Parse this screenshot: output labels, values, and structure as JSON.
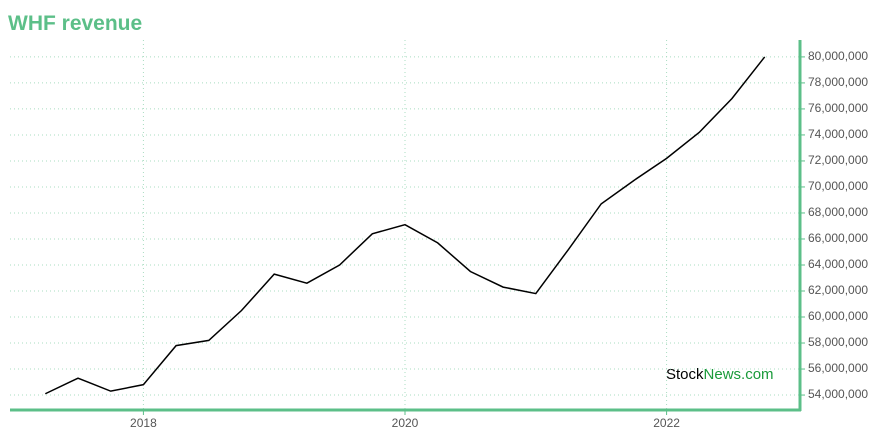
{
  "chart_data": {
    "type": "line",
    "title": "WHF revenue",
    "x": [
      2017.25,
      2017.5,
      2017.75,
      2018,
      2018.25,
      2018.5,
      2018.75,
      2019,
      2019.25,
      2019.5,
      2019.75,
      2020,
      2020.25,
      2020.5,
      2020.75,
      2021,
      2021.25,
      2021.5,
      2021.75,
      2022,
      2022.25,
      2022.5,
      2022.75
    ],
    "series": [
      {
        "color": "#000000",
        "values": [
          54100000,
          55300000,
          54300000,
          54800000,
          57800000,
          58200000,
          60500000,
          63300000,
          62600000,
          64000000,
          66400000,
          67100000,
          65700000,
          63500000,
          62300000,
          61800000,
          65200000,
          68700000,
          70500000,
          72200000,
          74200000,
          76800000,
          80000000
        ]
      }
    ],
    "xlim": [
      2016.98,
      2023.02
    ],
    "xticks": [
      2018,
      2020,
      2022
    ],
    "ylim": [
      52850000,
      81300000
    ],
    "yticks": [
      {
        "value": 54000000,
        "label": "54,000,000"
      },
      {
        "value": 56000000,
        "label": "56,000,000"
      },
      {
        "value": 58000000,
        "label": "58,000,000"
      },
      {
        "value": 60000000,
        "label": "60,000,000"
      },
      {
        "value": 62000000,
        "label": "62,000,000"
      },
      {
        "value": 64000000,
        "label": "64,000,000"
      },
      {
        "value": 66000000,
        "label": "66,000,000"
      },
      {
        "value": 68000000,
        "label": "68,000,000"
      },
      {
        "value": 70000000,
        "label": "70,000,000"
      },
      {
        "value": 72000000,
        "label": "72,000,000"
      },
      {
        "value": 74000000,
        "label": "74,000,000"
      },
      {
        "value": 76000000,
        "label": "76,000,000"
      },
      {
        "value": 78000000,
        "label": "78,000,000"
      },
      {
        "value": 80000000,
        "label": "80,000,000"
      }
    ],
    "grid": true,
    "axis_color": "#5cbf88",
    "watermark": [
      "Stock",
      "News.com"
    ]
  }
}
